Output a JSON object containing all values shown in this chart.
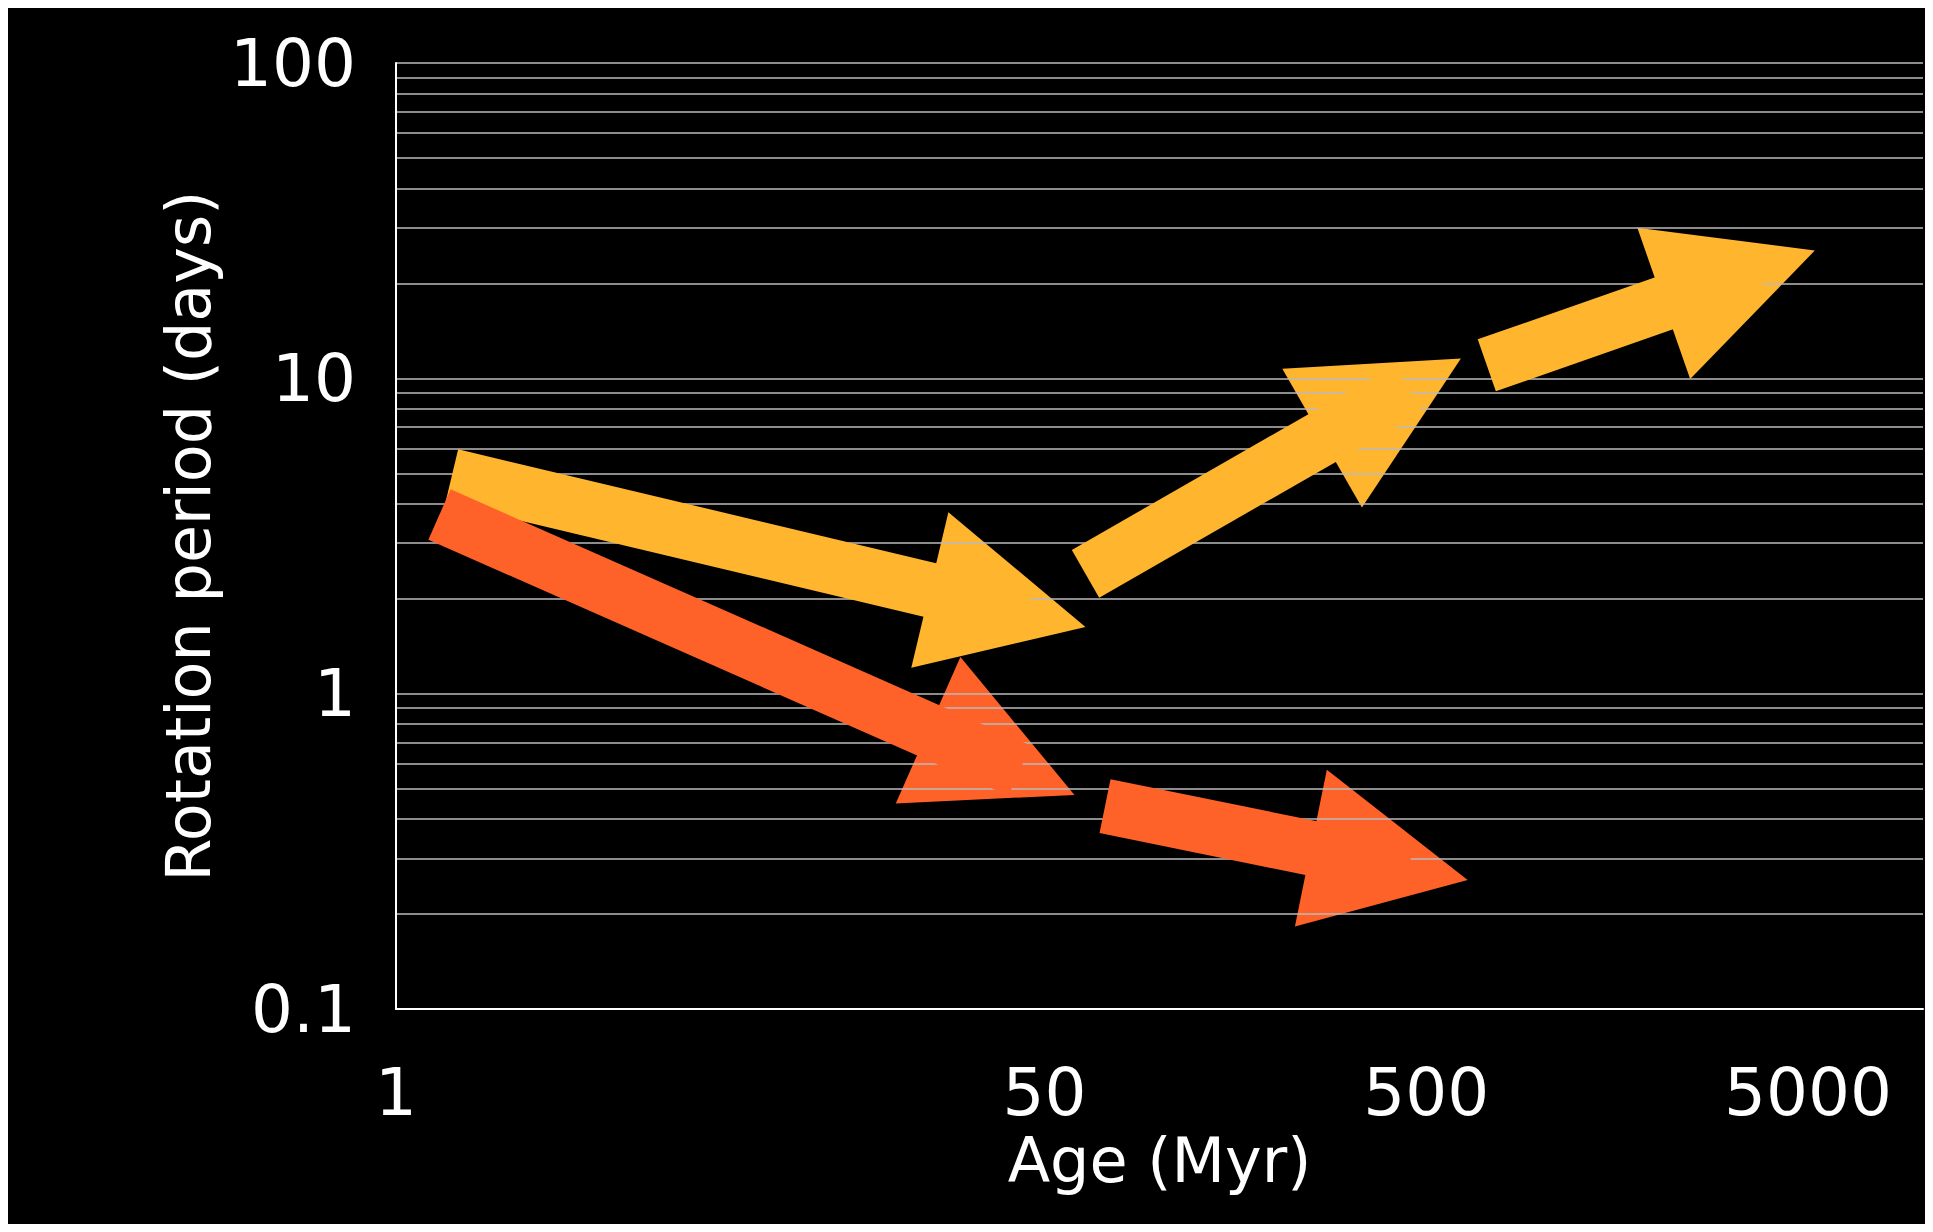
{
  "chart_data": {
    "type": "line",
    "xlabel": "Age (Myr)",
    "ylabel": "Rotation period (days)",
    "log": "xy",
    "grid": "y",
    "xlim": [
      1,
      10000
    ],
    "xticks": [
      1,
      50,
      500,
      5000
    ],
    "ylim": [
      0.1,
      100
    ],
    "yticks": [
      0.1,
      {
        "value": 0.2,
        "label": null
      },
      {
        "value": 0.3,
        "label": null
      },
      {
        "value": 0.4,
        "label": null
      },
      {
        "value": 0.5,
        "label": null
      },
      {
        "value": 0.6,
        "label": null
      },
      {
        "value": 0.7,
        "label": null
      },
      {
        "value": 0.8,
        "label": null
      },
      {
        "value": 0.9,
        "label": null
      },
      1,
      {
        "value": 2,
        "label": null
      },
      {
        "value": 3,
        "label": null
      },
      {
        "value": 4,
        "label": null
      },
      {
        "value": 5,
        "label": null
      },
      {
        "value": 6,
        "label": null
      },
      {
        "value": 7,
        "label": null
      },
      {
        "value": 8,
        "label": null
      },
      {
        "value": 9,
        "label": null
      },
      10,
      {
        "value": 20,
        "label": null
      },
      {
        "value": 30,
        "label": null
      },
      {
        "value": 40,
        "label": null
      },
      {
        "value": 50,
        "label": null
      },
      {
        "value": 60,
        "label": null
      },
      {
        "value": 70,
        "label": null
      },
      {
        "value": 80,
        "label": null
      },
      {
        "value": 90,
        "label": null
      },
      100
    ],
    "series": [
      {
        "color": "#ffb52e",
        "x": [
          1.4,
          45
        ],
        "values": [
          4.9,
          1.8
        ]
      },
      {
        "color": "#ff6229",
        "x": [
          1.3,
          43
        ],
        "values": [
          3.7,
          0.57
        ]
      },
      {
        "color": "#ffb52e",
        "x": [
          64,
          450
        ],
        "values": [
          2.4,
          9.3
        ]
      },
      {
        "color": "#ffb52e",
        "x": [
          720,
          3700
        ],
        "values": [
          11,
          22
        ]
      },
      {
        "color": "#ff6229",
        "x": [
          72,
          450
        ],
        "values": [
          0.44,
          0.28
        ]
      }
    ]
  }
}
